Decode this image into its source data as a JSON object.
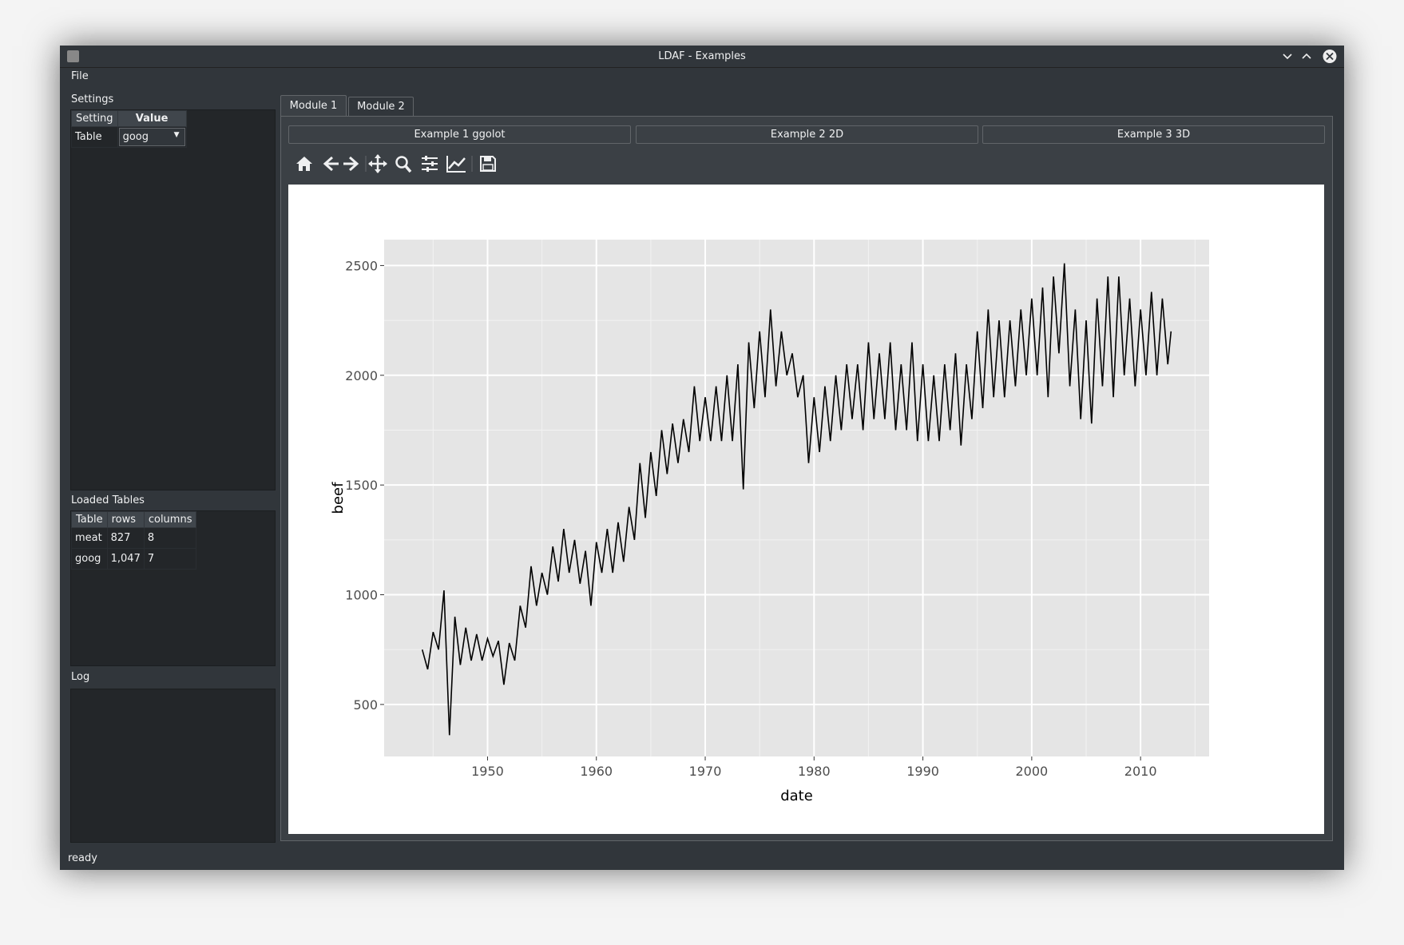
{
  "window": {
    "title": "LDAF - Examples",
    "menu": [
      "File"
    ],
    "status": "ready"
  },
  "settings": {
    "label": "Settings",
    "headers": [
      "Setting",
      "Value"
    ],
    "rows": [
      [
        "Table",
        "goog"
      ]
    ]
  },
  "loaded_tables": {
    "label": "Loaded Tables",
    "headers": [
      "Table",
      "rows",
      "columns"
    ],
    "rows": [
      [
        "meat",
        "827",
        "8"
      ],
      [
        "goog",
        "1,047",
        "7"
      ]
    ]
  },
  "log": {
    "label": "Log"
  },
  "tabs": [
    "Module 1",
    "Module 2"
  ],
  "buttons": [
    "Example 1 ggolot",
    "Example 2 2D",
    "Example 3 3D"
  ],
  "chart_data": {
    "type": "line",
    "x_label": "date",
    "y_label": "beef",
    "color": "#000000",
    "background": "#e5e5e5",
    "grid": true,
    "x": [
      1944,
      1944.5,
      1945,
      1945.5,
      1946,
      1946.5,
      1947,
      1947.5,
      1948,
      1948.5,
      1949,
      1949.5,
      1950,
      1950.5,
      1951,
      1951.5,
      1952,
      1952.5,
      1953,
      1953.5,
      1954,
      1954.5,
      1955,
      1955.5,
      1956,
      1956.5,
      1957,
      1957.5,
      1958,
      1958.5,
      1959,
      1959.5,
      1960,
      1960.5,
      1961,
      1961.5,
      1962,
      1962.5,
      1963,
      1963.5,
      1964,
      1964.5,
      1965,
      1965.5,
      1966,
      1966.5,
      1967,
      1967.5,
      1968,
      1968.5,
      1969,
      1969.5,
      1970,
      1970.5,
      1971,
      1971.5,
      1972,
      1972.5,
      1973,
      1973.5,
      1974,
      1974.5,
      1975,
      1975.5,
      1976,
      1976.5,
      1977,
      1977.5,
      1978,
      1978.5,
      1979,
      1979.5,
      1980,
      1980.5,
      1981,
      1981.5,
      1982,
      1982.5,
      1983,
      1983.5,
      1984,
      1984.5,
      1985,
      1985.5,
      1986,
      1986.5,
      1987,
      1987.5,
      1988,
      1988.5,
      1989,
      1989.5,
      1990,
      1990.5,
      1991,
      1991.5,
      1992,
      1992.5,
      1993,
      1993.5,
      1994,
      1994.5,
      1995,
      1995.5,
      1996,
      1996.5,
      1997,
      1997.5,
      1998,
      1998.5,
      1999,
      1999.5,
      2000,
      2000.5,
      2001,
      2001.5,
      2002,
      2002.5,
      2003,
      2003.5,
      2004,
      2004.5,
      2005,
      2005.5,
      2006,
      2006.5,
      2007,
      2007.5,
      2008,
      2008.5,
      2009,
      2009.5,
      2010,
      2010.5,
      2011,
      2011.5,
      2012,
      2012.5,
      2012.8
    ],
    "values": [
      750,
      660,
      830,
      750,
      1020,
      360,
      900,
      680,
      850,
      700,
      820,
      700,
      800,
      720,
      790,
      590,
      780,
      700,
      950,
      850,
      1130,
      950,
      1100,
      1000,
      1220,
      1060,
      1300,
      1100,
      1250,
      1050,
      1200,
      950,
      1240,
      1100,
      1300,
      1100,
      1330,
      1150,
      1400,
      1250,
      1600,
      1350,
      1650,
      1450,
      1750,
      1550,
      1780,
      1600,
      1800,
      1650,
      1950,
      1700,
      1900,
      1700,
      1950,
      1700,
      2000,
      1700,
      2050,
      1480,
      2150,
      1850,
      2200,
      1900,
      2300,
      1950,
      2200,
      2000,
      2100,
      1900,
      2000,
      1600,
      1900,
      1650,
      1950,
      1700,
      2000,
      1750,
      2050,
      1800,
      2050,
      1750,
      2150,
      1800,
      2100,
      1800,
      2150,
      1750,
      2050,
      1750,
      2150,
      1700,
      2050,
      1700,
      2000,
      1700,
      2050,
      1750,
      2100,
      1680,
      2050,
      1800,
      2200,
      1850,
      2300,
      1900,
      2250,
      1900,
      2250,
      1950,
      2300,
      2000,
      2350,
      2000,
      2400,
      1900,
      2450,
      2100,
      2510,
      1950,
      2300,
      1800,
      2250,
      1780,
      2350,
      1950,
      2450,
      1900,
      2450,
      2000,
      2350,
      1950,
      2300,
      2000,
      2380,
      2000,
      2350,
      2050,
      2200
    ],
    "xlim": [
      1940.5,
      2016.3
    ],
    "ylim": [
      263,
      2618
    ],
    "xticks": [
      1950,
      1960,
      1970,
      1980,
      1990,
      2000,
      2010
    ],
    "yticks": [
      500,
      1000,
      1500,
      2000,
      2500
    ],
    "x_minor_grid": [
      1945,
      1955,
      1965,
      1975,
      1985,
      1995,
      2005,
      2015
    ],
    "y_minor_grid": [
      750,
      1250,
      1750,
      2250
    ]
  }
}
